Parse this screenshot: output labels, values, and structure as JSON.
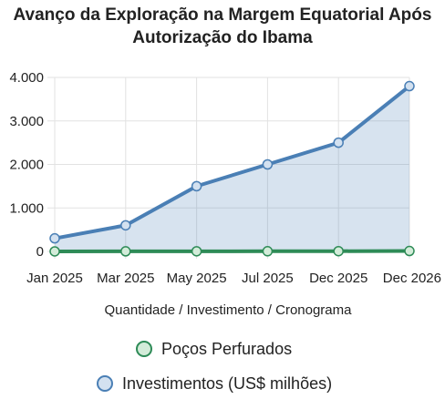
{
  "chart_data": {
    "type": "line",
    "title_lines": [
      "Avanço da Exploração na Margem Equatorial Após",
      "Autorização do Ibama"
    ],
    "xlabel": "Quantidade / Investimento / Cronograma",
    "categories": [
      "Jan 2025",
      "Mar 2025",
      "May 2025",
      "Jul 2025",
      "Dec 2025",
      "Dec 2026"
    ],
    "ylim": [
      0,
      4000
    ],
    "yticks": [
      0,
      1000,
      2000,
      3000,
      4000
    ],
    "ytick_labels": [
      "0",
      "1.000",
      "2.000",
      "3.000",
      "4.000"
    ],
    "grid": true,
    "legend_position": "bottom",
    "series": [
      {
        "name": "Poços Perfurados",
        "values": [
          1,
          2,
          3,
          4,
          6,
          10
        ],
        "color": "#2e8b57",
        "fill": "rgba(46,139,87,0.25)",
        "marker_fill": "#d3ecd9",
        "filled": false
      },
      {
        "name": "Investimentos (US$ milhões)",
        "values": [
          300,
          600,
          1500,
          2000,
          2500,
          3800
        ],
        "color": "#4a7fb5",
        "fill": "rgba(74,127,181,0.22)",
        "marker_fill": "#d3e1f0",
        "filled": true
      }
    ]
  }
}
